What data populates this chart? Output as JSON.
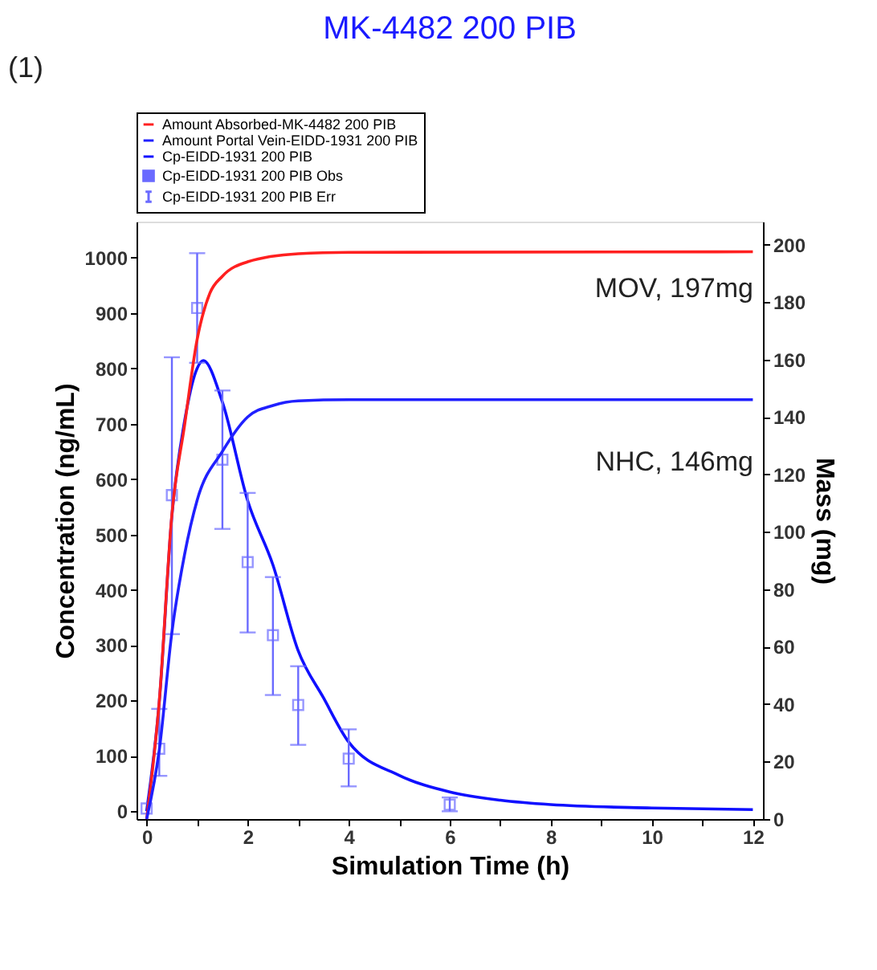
{
  "chart_data": {
    "type": "line",
    "title": "MK-4482 200 PIB",
    "xlabel": "Simulation Time (h)",
    "ylabel": "Concentration (ng/mL)",
    "y2label": "Mass (mg)",
    "xlim": [
      -0.2,
      12.2
    ],
    "xticks": [
      0,
      {
        "value": 1,
        "label": null
      },
      2,
      {
        "value": 3,
        "label": null
      },
      4,
      {
        "value": 5,
        "label": null
      },
      6,
      {
        "value": 7,
        "label": null
      },
      8,
      {
        "value": 9,
        "label": null
      },
      10,
      {
        "value": 11,
        "label": null
      },
      12
    ],
    "ylim": [
      -14,
      1065
    ],
    "yticks": [
      0,
      100,
      200,
      300,
      400,
      500,
      600,
      700,
      800,
      900,
      1000
    ],
    "y2lim": [
      0,
      208
    ],
    "y2ticks": [
      0,
      20,
      40,
      60,
      80,
      100,
      120,
      140,
      160,
      180,
      200
    ],
    "legend": "top",
    "grid": false,
    "series": [
      {
        "name": "Amount Absorbed-MK-4482 200 PIB",
        "axis": "y2",
        "color": "#ff2020",
        "x": [
          0,
          0.25,
          0.5,
          0.75,
          1,
          1.25,
          1.5,
          2,
          3,
          4,
          12
        ],
        "values": [
          0,
          41,
          106,
          137,
          167,
          183,
          189,
          194,
          196.8,
          197.3,
          197.5
        ]
      },
      {
        "name": "Amount Portal Vein-EIDD-1931 200 PIB",
        "axis": "y2",
        "color": "#2020ff",
        "x": [
          0,
          0.25,
          0.5,
          0.75,
          1,
          1.5,
          2,
          2.5,
          3,
          4,
          12
        ],
        "values": [
          0,
          24,
          65,
          92,
          111,
          128,
          140,
          144,
          145.6,
          146,
          146
        ]
      },
      {
        "name": "Cp-EIDD-1931 200 PIB",
        "color": "#1010ff",
        "x": [
          0,
          0.25,
          0.5,
          0.75,
          1,
          1.12,
          1.5,
          2,
          2.5,
          3,
          3.5,
          4,
          5,
          6,
          7,
          8,
          10,
          12
        ],
        "values": [
          0,
          197,
          534,
          704,
          800,
          814,
          739,
          561,
          445,
          290,
          205,
          125,
          65,
          35,
          20,
          12,
          6,
          3
        ]
      },
      {
        "name": "Cp-EIDD-1931 200 PIB Obs",
        "type": "scatter",
        "marker": "square",
        "color": "#6a6aff",
        "x": [
          0,
          0.25,
          0.5,
          1,
          1.5,
          2,
          2.5,
          3,
          4,
          6
        ],
        "values": [
          5,
          113,
          571,
          909,
          635,
          450,
          318,
          192,
          95,
          12
        ],
        "errors": [
          null,
          [
            64,
            185
          ],
          [
            320,
            820
          ],
          [
            810,
            1008
          ],
          [
            510,
            760
          ],
          [
            323,
            575
          ],
          [
            210,
            423
          ],
          [
            120,
            262
          ],
          [
            45,
            148
          ],
          [
            0,
            25
          ]
        ]
      }
    ],
    "annotations": [
      "(1)",
      "MOV, 197mg",
      "NHC, 146mg",
      "Cp-EIDD-1931 200 PIB Err"
    ]
  }
}
